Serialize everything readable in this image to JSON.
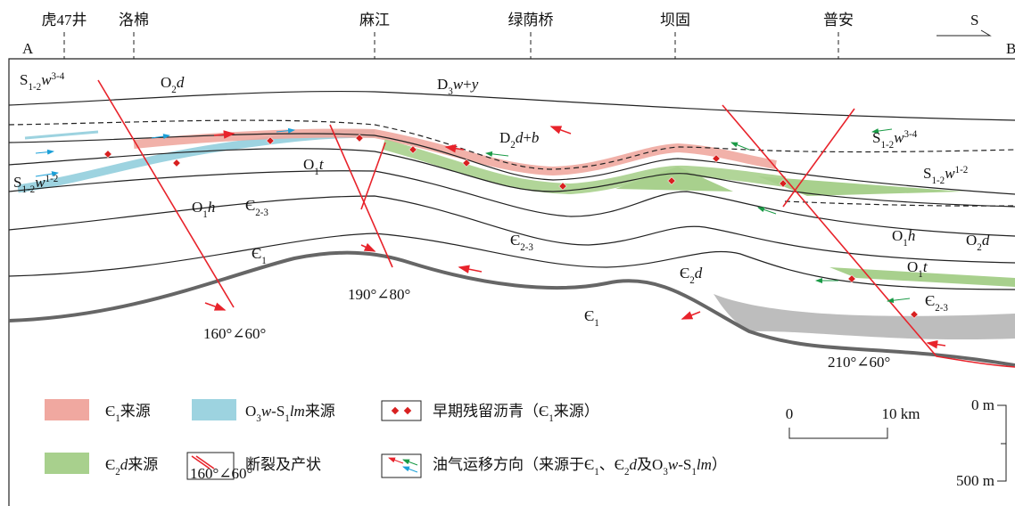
{
  "section": {
    "start": "A",
    "end": "B",
    "direction": "S",
    "wells": [
      "虎47井",
      "洛棉",
      "麻江",
      "绿荫桥",
      "坝固",
      "普安"
    ],
    "formations": [
      [
        {
          "text": "S"
        },
        {
          "text": "1-2",
          "style": "sub"
        },
        {
          "text": "w",
          "style": "italic"
        },
        {
          "text": "3-4",
          "style": "sup"
        }
      ],
      [
        {
          "text": "O"
        },
        {
          "text": "2",
          "style": "sub"
        },
        {
          "text": "d",
          "style": "italic"
        }
      ],
      [
        {
          "text": "D"
        },
        {
          "text": "3",
          "style": "sub"
        },
        {
          "text": "w",
          "style": "italic"
        },
        {
          "text": "+"
        },
        {
          "text": "y",
          "style": "italic"
        }
      ],
      [
        {
          "text": "D"
        },
        {
          "text": "2",
          "style": "sub"
        },
        {
          "text": "d",
          "style": "italic"
        },
        {
          "text": "+"
        },
        {
          "text": "b",
          "style": "italic"
        }
      ],
      [
        {
          "text": "S"
        },
        {
          "text": "1-2",
          "style": "sub"
        },
        {
          "text": "w",
          "style": "italic"
        },
        {
          "text": "1-2",
          "style": "sup"
        }
      ],
      [
        {
          "text": "O"
        },
        {
          "text": "1",
          "style": "sub"
        },
        {
          "text": "h",
          "style": "italic"
        }
      ],
      [
        {
          "text": "O"
        },
        {
          "text": "1",
          "style": "sub"
        },
        {
          "text": "t",
          "style": "italic"
        }
      ],
      [
        {
          "text": "Є"
        },
        {
          "text": "2-3",
          "style": "sub"
        }
      ],
      [
        {
          "text": "Є"
        },
        {
          "text": "1",
          "style": "sub"
        }
      ],
      [
        {
          "text": "Є"
        },
        {
          "text": "2-3",
          "style": "sub"
        }
      ],
      [
        {
          "text": "Є"
        },
        {
          "text": "2",
          "style": "sub"
        },
        {
          "text": "d",
          "style": "italic"
        }
      ],
      [
        {
          "text": "Є"
        },
        {
          "text": "1",
          "style": "sub"
        }
      ],
      [
        {
          "text": "S"
        },
        {
          "text": "1-2",
          "style": "sub"
        },
        {
          "text": "w",
          "style": "italic"
        },
        {
          "text": "3-4",
          "style": "sup"
        }
      ],
      [
        {
          "text": "S"
        },
        {
          "text": "1-2",
          "style": "sub"
        },
        {
          "text": "w",
          "style": "italic"
        },
        {
          "text": "1-2",
          "style": "sup"
        }
      ],
      [
        {
          "text": "O"
        },
        {
          "text": "1",
          "style": "sub"
        },
        {
          "text": "h",
          "style": "italic"
        }
      ],
      [
        {
          "text": "O"
        },
        {
          "text": "2",
          "style": "sub"
        },
        {
          "text": "d",
          "style": "italic"
        }
      ],
      [
        {
          "text": "O"
        },
        {
          "text": "1",
          "style": "sub"
        },
        {
          "text": "t",
          "style": "italic"
        }
      ],
      [
        {
          "text": "Є"
        },
        {
          "text": "2-3",
          "style": "sub"
        }
      ]
    ],
    "fault_attitudes": [
      "160°∠60°",
      "190°∠80°",
      "210°∠60°"
    ]
  },
  "legend": {
    "items": [
      [
        {
          "text": "Є"
        },
        {
          "text": "1",
          "style": "sub"
        },
        {
          "text": "来源"
        }
      ],
      [
        {
          "text": "O"
        },
        {
          "text": "3",
          "style": "sub"
        },
        {
          "text": "w",
          "style": "italic"
        },
        {
          "text": "-S"
        },
        {
          "text": "1",
          "style": "sub"
        },
        {
          "text": "lm",
          "style": "italic"
        },
        {
          "text": "来源"
        }
      ],
      [
        {
          "text": "早期残留沥青（Є"
        },
        {
          "text": "1",
          "style": "sub"
        },
        {
          "text": "来源）"
        }
      ],
      [
        {
          "text": "Є"
        },
        {
          "text": "2",
          "style": "sub"
        },
        {
          "text": "d",
          "style": "italic"
        },
        {
          "text": "来源"
        }
      ],
      [
        {
          "text": "断裂及产状"
        }
      ],
      [
        {
          "text": "油气运移方向（来源于Є"
        },
        {
          "text": "1",
          "style": "sub"
        },
        {
          "text": "、Є"
        },
        {
          "text": "2",
          "style": "sub"
        },
        {
          "text": "d",
          "style": "italic"
        },
        {
          "text": "及O"
        },
        {
          "text": "3",
          "style": "sub"
        },
        {
          "text": "w",
          "style": "italic"
        },
        {
          "text": "-S"
        },
        {
          "text": "1",
          "style": "sub"
        },
        {
          "text": "lm",
          "style": "italic"
        },
        {
          "text": "）"
        }
      ]
    ],
    "fault_icon_text": "160°∠60°"
  },
  "scale": {
    "horizontal": [
      "0",
      "10 km"
    ],
    "vertical": [
      "0 m",
      "500 m"
    ]
  }
}
